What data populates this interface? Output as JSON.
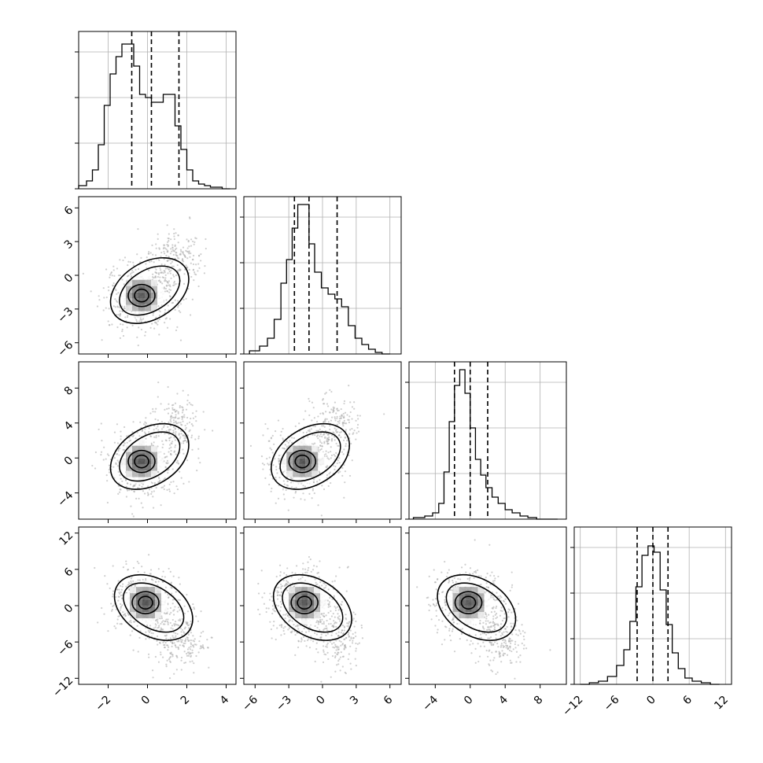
{
  "chart_data": {
    "type": "corner",
    "parameters": 4,
    "grid": true,
    "quantile_lines": "dashed",
    "histograms": [
      {
        "param": 0,
        "range": [
          -3.5,
          4.5
        ],
        "xticks": [
          -2,
          0,
          2,
          4
        ],
        "quantiles": [
          -0.8,
          0.2,
          1.6
        ],
        "bin_edges": [
          -3.5,
          -3.1,
          -2.8,
          -2.5,
          -2.2,
          -1.9,
          -1.6,
          -1.3,
          -1.0,
          -0.7,
          -0.4,
          -0.1,
          0.2,
          0.5,
          0.8,
          1.1,
          1.4,
          1.7,
          2.0,
          2.3,
          2.6,
          2.9,
          3.2,
          3.5,
          3.8,
          4.2
        ],
        "counts": [
          0.02,
          0.05,
          0.12,
          0.28,
          0.53,
          0.73,
          0.84,
          0.92,
          0.92,
          0.78,
          0.6,
          0.58,
          0.55,
          0.55,
          0.6,
          0.6,
          0.4,
          0.25,
          0.12,
          0.05,
          0.03,
          0.02,
          0.01,
          0.01,
          0.0
        ]
      },
      {
        "param": 1,
        "range": [
          -7,
          7
        ],
        "xticks": [
          -6,
          -3,
          0,
          3,
          6
        ],
        "quantiles": [
          -2.5,
          -1.2,
          1.3
        ],
        "bin_edges": [
          -6.5,
          -5.6,
          -4.9,
          -4.3,
          -3.7,
          -3.2,
          -2.7,
          -2.2,
          -1.7,
          -1.2,
          -0.7,
          -0.1,
          0.5,
          1.1,
          1.7,
          2.3,
          2.9,
          3.5,
          4.1,
          4.7,
          5.3,
          6.0
        ],
        "counts": [
          0.02,
          0.05,
          0.1,
          0.22,
          0.45,
          0.6,
          0.8,
          0.95,
          0.95,
          0.7,
          0.52,
          0.42,
          0.38,
          0.35,
          0.3,
          0.18,
          0.1,
          0.06,
          0.03,
          0.01,
          0.0
        ]
      },
      {
        "param": 2,
        "range": [
          -7,
          11
        ],
        "xticks": [
          -4,
          0,
          4,
          8
        ],
        "quantiles": [
          -1.8,
          0.0,
          2.0
        ],
        "bin_edges": [
          -6.5,
          -5.2,
          -4.3,
          -3.6,
          -3.0,
          -2.4,
          -1.8,
          -1.2,
          -0.6,
          0.0,
          0.6,
          1.2,
          1.8,
          2.5,
          3.2,
          4.0,
          4.8,
          5.7,
          6.6,
          7.6,
          8.7,
          10.0
        ],
        "counts": [
          0.01,
          0.02,
          0.04,
          0.1,
          0.3,
          0.62,
          0.85,
          0.95,
          0.8,
          0.58,
          0.38,
          0.28,
          0.2,
          0.14,
          0.1,
          0.06,
          0.04,
          0.02,
          0.01,
          0.0,
          0.0
        ]
      },
      {
        "param": 3,
        "range": [
          -13,
          13
        ],
        "xticks": [
          -12,
          -6,
          0,
          6,
          12
        ],
        "quantiles": [
          -2.6,
          0.0,
          2.5
        ],
        "bin_edges": [
          -12,
          -10.5,
          -9,
          -7.5,
          -6,
          -4.8,
          -3.8,
          -2.8,
          -1.8,
          -0.8,
          0.2,
          1.2,
          2.2,
          3.2,
          4.2,
          5.3,
          6.5,
          8,
          9.5,
          11
        ],
        "counts": [
          0.0,
          0.01,
          0.02,
          0.05,
          0.12,
          0.22,
          0.4,
          0.62,
          0.82,
          0.88,
          0.84,
          0.6,
          0.38,
          0.2,
          0.1,
          0.04,
          0.02,
          0.01,
          0.0
        ]
      }
    ],
    "scatter_panels": [
      {
        "row": 1,
        "col": 0,
        "xrange": [
          -3.5,
          4.5
        ],
        "yrange": [
          -7,
          7
        ],
        "yticks": [
          -6,
          -3,
          0,
          3,
          6
        ],
        "cx": -0.3,
        "cy": -1.8
      },
      {
        "row": 2,
        "col": 0,
        "xrange": [
          -3.5,
          4.5
        ],
        "yrange": [
          -7,
          11
        ],
        "yticks": [
          -4,
          0,
          4,
          8
        ],
        "cx": -0.3,
        "cy": -0.4
      },
      {
        "row": 2,
        "col": 1,
        "xrange": [
          -7,
          7
        ],
        "yrange": [
          -7,
          11
        ],
        "cx": -1.8,
        "cy": -0.4
      },
      {
        "row": 3,
        "col": 0,
        "xrange": [
          -3.5,
          4.5
        ],
        "yrange": [
          -13,
          13
        ],
        "yticks": [
          -12,
          -6,
          0,
          6,
          12
        ],
        "cx": -0.1,
        "cy": 0.5
      },
      {
        "row": 3,
        "col": 1,
        "xrange": [
          -7,
          7
        ],
        "yrange": [
          -13,
          13
        ],
        "cx": -1.6,
        "cy": 0.5
      },
      {
        "row": 3,
        "col": 2,
        "xrange": [
          -7,
          11
        ],
        "yrange": [
          -13,
          13
        ],
        "cx": -0.2,
        "cy": 0.5
      }
    ],
    "colors": {
      "points": "#a8a8a8",
      "ink": "#000000",
      "grid": "#b0b0b0"
    }
  }
}
